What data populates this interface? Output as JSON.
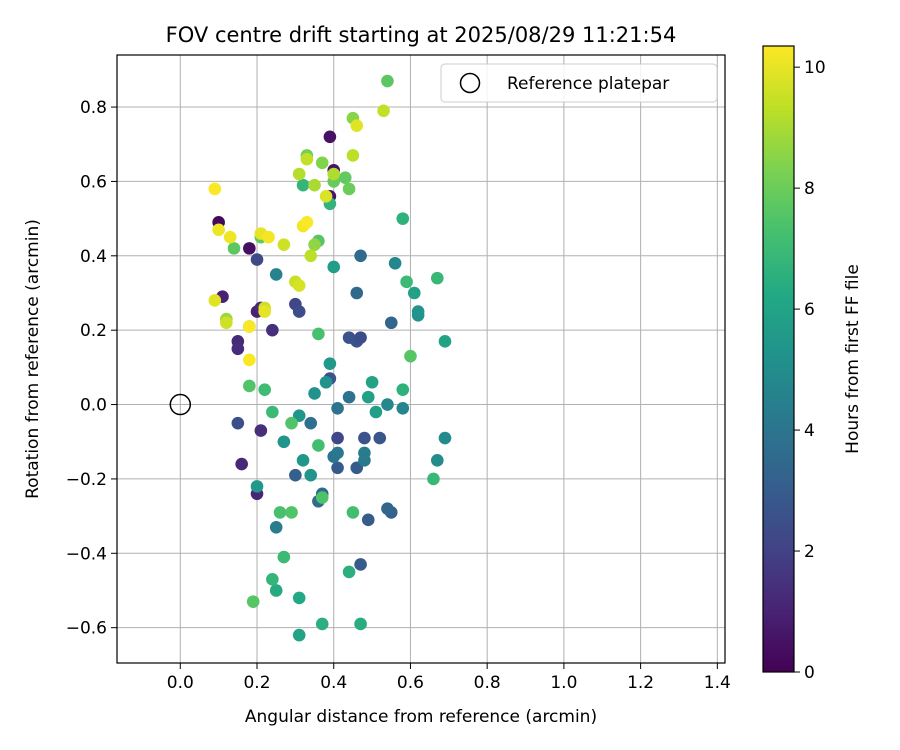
{
  "chart_data": {
    "type": "scatter",
    "title": "FOV centre drift starting at 2025/08/29 11:21:54",
    "xlabel": "Angular distance from reference (arcmin)",
    "ylabel": "Rotation from reference (arcmin)",
    "xlim": [
      -0.165,
      1.42
    ],
    "ylim": [
      -0.695,
      0.94
    ],
    "xticks": [
      0.0,
      0.2,
      0.4,
      0.6,
      0.8,
      1.0,
      1.2,
      1.4
    ],
    "xtick_labels": [
      "0.0",
      "0.2",
      "0.4",
      "0.6",
      "0.8",
      "1.0",
      "1.2",
      "1.4"
    ],
    "yticks": [
      -0.6,
      -0.4,
      -0.2,
      0.0,
      0.2,
      0.4,
      0.6,
      0.8
    ],
    "ytick_labels": [
      "−0.6",
      "−0.4",
      "−0.2",
      "0.0",
      "0.2",
      "0.4",
      "0.6",
      "0.8"
    ],
    "grid": true,
    "legend": {
      "placement": "upper-right",
      "entries": [
        "Reference platepar"
      ]
    },
    "reference_point": {
      "x": 0.0,
      "y": 0.0,
      "marker": "open-circle"
    },
    "colorbar": {
      "label": "Hours from first FF file",
      "colormap": "viridis",
      "range": [
        0,
        10.35
      ],
      "ticks": [
        0,
        2,
        4,
        6,
        8,
        10
      ],
      "tick_labels": [
        "0",
        "2",
        "4",
        "6",
        "8",
        "10"
      ]
    },
    "points": [
      {
        "x": 0.1,
        "y": 0.49,
        "h": 0.2
      },
      {
        "x": 0.18,
        "y": 0.42,
        "h": 0.4
      },
      {
        "x": 0.39,
        "y": 0.72,
        "h": 0.5
      },
      {
        "x": 0.4,
        "y": 0.63,
        "h": 0.5
      },
      {
        "x": 0.39,
        "y": 0.56,
        "h": 0.6
      },
      {
        "x": 0.11,
        "y": 0.29,
        "h": 1.0
      },
      {
        "x": 0.2,
        "y": 0.25,
        "h": 1.0
      },
      {
        "x": 0.21,
        "y": 0.26,
        "h": 1.2
      },
      {
        "x": 0.15,
        "y": 0.17,
        "h": 1.2
      },
      {
        "x": 0.15,
        "y": 0.15,
        "h": 1.3
      },
      {
        "x": 0.24,
        "y": 0.2,
        "h": 1.4
      },
      {
        "x": 0.2,
        "y": -0.24,
        "h": 1.1
      },
      {
        "x": 0.16,
        "y": -0.16,
        "h": 1.2
      },
      {
        "x": 0.21,
        "y": -0.07,
        "h": 1.4
      },
      {
        "x": 0.2,
        "y": 0.39,
        "h": 2.3
      },
      {
        "x": 0.3,
        "y": 0.27,
        "h": 2.2
      },
      {
        "x": 0.31,
        "y": 0.25,
        "h": 2.4
      },
      {
        "x": 0.15,
        "y": -0.05,
        "h": 2.5
      },
      {
        "x": 0.41,
        "y": -0.09,
        "h": 2.2
      },
      {
        "x": 0.44,
        "y": 0.18,
        "h": 2.6
      },
      {
        "x": 0.46,
        "y": 0.17,
        "h": 2.7
      },
      {
        "x": 0.47,
        "y": 0.18,
        "h": 2.4
      },
      {
        "x": 0.39,
        "y": 0.07,
        "h": 2.7
      },
      {
        "x": 0.48,
        "y": -0.09,
        "h": 2.6
      },
      {
        "x": 0.52,
        "y": -0.09,
        "h": 2.8
      },
      {
        "x": 0.41,
        "y": -0.17,
        "h": 2.9
      },
      {
        "x": 0.46,
        "y": -0.17,
        "h": 3.0
      },
      {
        "x": 0.47,
        "y": -0.43,
        "h": 3.0
      },
      {
        "x": 0.49,
        "y": -0.31,
        "h": 3.0
      },
      {
        "x": 0.3,
        "y": -0.19,
        "h": 3.1
      },
      {
        "x": 0.55,
        "y": -0.29,
        "h": 3.2
      },
      {
        "x": 0.54,
        "y": -0.28,
        "h": 3.4
      },
      {
        "x": 0.55,
        "y": 0.22,
        "h": 3.4
      },
      {
        "x": 0.46,
        "y": 0.3,
        "h": 3.5
      },
      {
        "x": 0.47,
        "y": 0.4,
        "h": 3.6
      },
      {
        "x": 0.37,
        "y": -0.24,
        "h": 3.6
      },
      {
        "x": 0.36,
        "y": -0.26,
        "h": 3.6
      },
      {
        "x": 0.34,
        "y": -0.05,
        "h": 3.8
      },
      {
        "x": 0.41,
        "y": -0.01,
        "h": 3.9
      },
      {
        "x": 0.44,
        "y": 0.02,
        "h": 3.9
      },
      {
        "x": 0.4,
        "y": -0.14,
        "h": 4.0
      },
      {
        "x": 0.41,
        "y": -0.13,
        "h": 4.1
      },
      {
        "x": 0.48,
        "y": -0.15,
        "h": 4.2
      },
      {
        "x": 0.48,
        "y": -0.13,
        "h": 4.3
      },
      {
        "x": 0.25,
        "y": -0.33,
        "h": 4.4
      },
      {
        "x": 0.25,
        "y": 0.35,
        "h": 4.6
      },
      {
        "x": 0.56,
        "y": 0.38,
        "h": 4.7
      },
      {
        "x": 0.58,
        "y": -0.01,
        "h": 4.7
      },
      {
        "x": 0.54,
        "y": 0.0,
        "h": 4.8
      },
      {
        "x": 0.69,
        "y": -0.09,
        "h": 4.9
      },
      {
        "x": 0.67,
        "y": -0.15,
        "h": 5.0
      },
      {
        "x": 0.62,
        "y": 0.24,
        "h": 5.2
      },
      {
        "x": 0.62,
        "y": 0.25,
        "h": 5.3
      },
      {
        "x": 0.38,
        "y": 0.06,
        "h": 5.2
      },
      {
        "x": 0.31,
        "y": -0.03,
        "h": 5.4
      },
      {
        "x": 0.27,
        "y": -0.1,
        "h": 5.3
      },
      {
        "x": 0.32,
        "y": -0.15,
        "h": 5.4
      },
      {
        "x": 0.34,
        "y": -0.19,
        "h": 5.3
      },
      {
        "x": 0.2,
        "y": -0.22,
        "h": 5.5
      },
      {
        "x": 0.35,
        "y": 0.03,
        "h": 5.2
      },
      {
        "x": 0.39,
        "y": 0.11,
        "h": 5.5
      },
      {
        "x": 0.4,
        "y": 0.37,
        "h": 5.7
      },
      {
        "x": 0.51,
        "y": -0.02,
        "h": 5.8
      },
      {
        "x": 0.49,
        "y": 0.02,
        "h": 5.9
      },
      {
        "x": 0.5,
        "y": 0.06,
        "h": 6.0
      },
      {
        "x": 0.61,
        "y": 0.3,
        "h": 5.9
      },
      {
        "x": 0.69,
        "y": 0.17,
        "h": 6.0
      },
      {
        "x": 0.31,
        "y": -0.62,
        "h": 6.0
      },
      {
        "x": 0.31,
        "y": -0.52,
        "h": 6.2
      },
      {
        "x": 0.25,
        "y": -0.5,
        "h": 6.3
      },
      {
        "x": 0.47,
        "y": -0.59,
        "h": 6.4
      },
      {
        "x": 0.37,
        "y": -0.59,
        "h": 6.5
      },
      {
        "x": 0.44,
        "y": -0.45,
        "h": 6.5
      },
      {
        "x": 0.58,
        "y": 0.04,
        "h": 6.6
      },
      {
        "x": 0.58,
        "y": 0.5,
        "h": 6.6
      },
      {
        "x": 0.39,
        "y": 0.54,
        "h": 6.7
      },
      {
        "x": 0.32,
        "y": 0.59,
        "h": 6.8
      },
      {
        "x": 0.66,
        "y": -0.2,
        "h": 6.9
      },
      {
        "x": 0.67,
        "y": 0.34,
        "h": 6.9
      },
      {
        "x": 0.59,
        "y": 0.33,
        "h": 7.0
      },
      {
        "x": 0.24,
        "y": -0.47,
        "h": 6.8
      },
      {
        "x": 0.27,
        "y": -0.41,
        "h": 7.0
      },
      {
        "x": 0.24,
        "y": -0.02,
        "h": 7.0
      },
      {
        "x": 0.22,
        "y": 0.04,
        "h": 7.1
      },
      {
        "x": 0.36,
        "y": -0.11,
        "h": 7.2
      },
      {
        "x": 0.36,
        "y": 0.19,
        "h": 7.3
      },
      {
        "x": 0.45,
        "y": -0.29,
        "h": 7.2
      },
      {
        "x": 0.37,
        "y": -0.25,
        "h": 7.4
      },
      {
        "x": 0.29,
        "y": -0.05,
        "h": 7.5
      },
      {
        "x": 0.26,
        "y": -0.29,
        "h": 7.3
      },
      {
        "x": 0.29,
        "y": -0.29,
        "h": 7.5
      },
      {
        "x": 0.19,
        "y": -0.53,
        "h": 7.6
      },
      {
        "x": 0.18,
        "y": 0.05,
        "h": 7.5
      },
      {
        "x": 0.6,
        "y": 0.13,
        "h": 7.6
      },
      {
        "x": 0.54,
        "y": 0.87,
        "h": 7.7
      },
      {
        "x": 0.36,
        "y": 0.44,
        "h": 7.6
      },
      {
        "x": 0.21,
        "y": 0.45,
        "h": 7.8
      },
      {
        "x": 0.14,
        "y": 0.42,
        "h": 7.7
      },
      {
        "x": 0.18,
        "y": 0.21,
        "h": 7.9
      },
      {
        "x": 0.43,
        "y": 0.61,
        "h": 7.8
      },
      {
        "x": 0.4,
        "y": 0.6,
        "h": 7.9
      },
      {
        "x": 0.44,
        "y": 0.58,
        "h": 8.0
      },
      {
        "x": 0.33,
        "y": 0.67,
        "h": 8.1
      },
      {
        "x": 0.37,
        "y": 0.65,
        "h": 8.4
      },
      {
        "x": 0.45,
        "y": 0.77,
        "h": 8.5
      },
      {
        "x": 0.35,
        "y": 0.43,
        "h": 8.6
      },
      {
        "x": 0.12,
        "y": 0.23,
        "h": 8.8
      },
      {
        "x": 0.35,
        "y": 0.59,
        "h": 9.0
      },
      {
        "x": 0.4,
        "y": 0.62,
        "h": 9.1
      },
      {
        "x": 0.31,
        "y": 0.62,
        "h": 9.2
      },
      {
        "x": 0.45,
        "y": 0.67,
        "h": 9.3
      },
      {
        "x": 0.34,
        "y": 0.4,
        "h": 9.3
      },
      {
        "x": 0.33,
        "y": 0.66,
        "h": 9.4
      },
      {
        "x": 0.53,
        "y": 0.79,
        "h": 9.4
      },
      {
        "x": 0.12,
        "y": 0.22,
        "h": 9.6
      },
      {
        "x": 0.22,
        "y": 0.26,
        "h": 9.6
      },
      {
        "x": 0.3,
        "y": 0.33,
        "h": 9.5
      },
      {
        "x": 0.31,
        "y": 0.32,
        "h": 9.7
      },
      {
        "x": 0.27,
        "y": 0.43,
        "h": 9.6
      },
      {
        "x": 0.38,
        "y": 0.56,
        "h": 9.8
      },
      {
        "x": 0.46,
        "y": 0.75,
        "h": 9.9
      },
      {
        "x": 0.09,
        "y": 0.28,
        "h": 9.9
      },
      {
        "x": 0.21,
        "y": 0.46,
        "h": 10.0
      },
      {
        "x": 0.22,
        "y": 0.25,
        "h": 10.0
      },
      {
        "x": 0.1,
        "y": 0.47,
        "h": 10.1
      },
      {
        "x": 0.13,
        "y": 0.45,
        "h": 10.1
      },
      {
        "x": 0.23,
        "y": 0.45,
        "h": 10.2
      },
      {
        "x": 0.32,
        "y": 0.48,
        "h": 10.2
      },
      {
        "x": 0.33,
        "y": 0.49,
        "h": 10.3
      },
      {
        "x": 0.09,
        "y": 0.58,
        "h": 10.3
      },
      {
        "x": 0.18,
        "y": 0.21,
        "h": 10.3
      },
      {
        "x": 0.18,
        "y": 0.12,
        "h": 10.3
      }
    ]
  }
}
